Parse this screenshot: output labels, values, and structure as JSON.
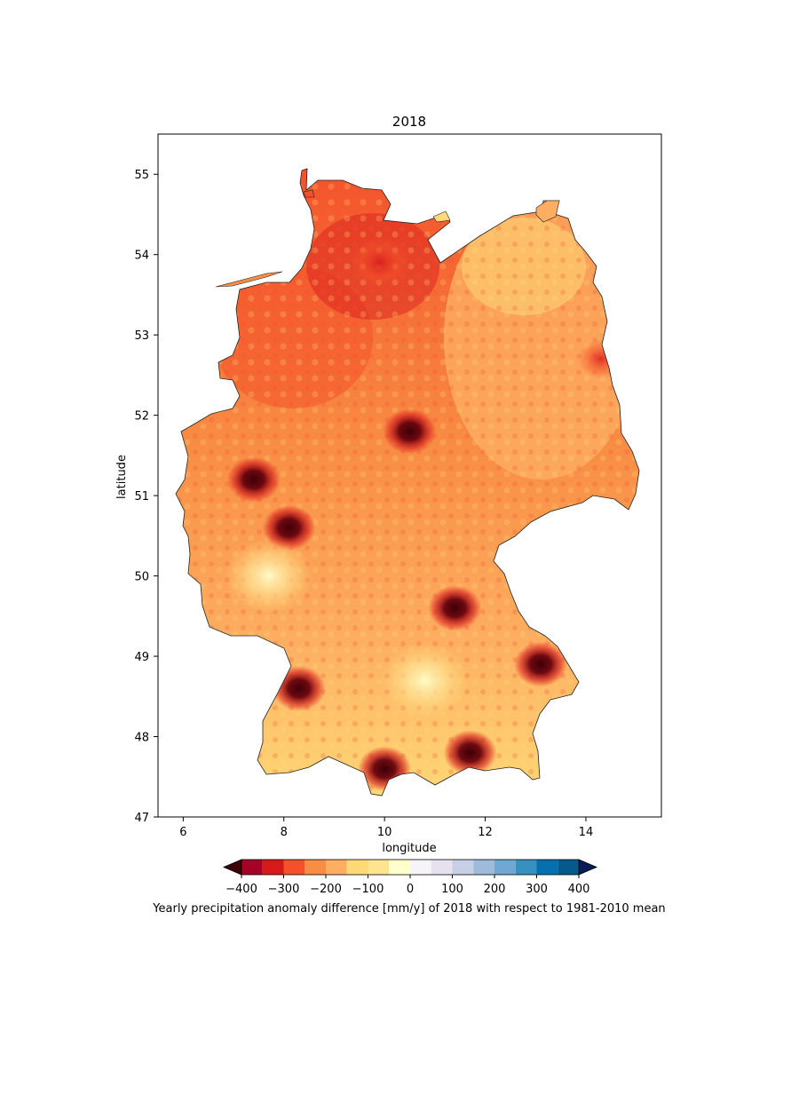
{
  "chart_data": {
    "type": "heatmap",
    "title": "2018",
    "xlabel": "longitude",
    "ylabel": "latitude",
    "xlim": [
      5.5,
      15.5
    ],
    "ylim": [
      47,
      55.5
    ],
    "xticks": [
      "6",
      "8",
      "10",
      "12",
      "14"
    ],
    "yticks": [
      "47",
      "48",
      "49",
      "50",
      "51",
      "52",
      "53",
      "54",
      "55"
    ],
    "colorbar": {
      "label": "Yearly precipitation anomaly difference [mm/y] of 2018 with respect to 1981-2010 mean",
      "levels": [
        -450,
        -400,
        -350,
        -300,
        -250,
        -200,
        -150,
        -100,
        -50,
        0,
        50,
        100,
        150,
        200,
        250,
        300,
        350,
        400,
        450
      ],
      "ticks": [
        {
          "value": -400,
          "label": "−400"
        },
        {
          "value": -300,
          "label": "−300"
        },
        {
          "value": -200,
          "label": "−200"
        },
        {
          "value": -100,
          "label": "−100"
        },
        {
          "value": 0,
          "label": "0"
        },
        {
          "value": 100,
          "label": "100"
        },
        {
          "value": 200,
          "label": "200"
        },
        {
          "value": 300,
          "label": "300"
        },
        {
          "value": 400,
          "label": "400"
        }
      ],
      "extend": "both",
      "colormap": "RdYlBu-like (red negative, blue positive)",
      "colors": [
        "#67000d",
        "#a50026",
        "#d7191c",
        "#f4502a",
        "#f88d44",
        "#fdae61",
        "#fed976",
        "#fee391",
        "#ffffcc",
        "#f7f4f9",
        "#e7e1ef",
        "#c6cfe5",
        "#9ebcda",
        "#6fa8d3",
        "#3690c0",
        "#0570b0",
        "#045a8d",
        "#023858"
      ],
      "under_color": "#3d0006",
      "over_color": "#081d58"
    },
    "hotspots": [
      {
        "lon": 7.4,
        "lat": 51.2,
        "value": -450
      },
      {
        "lon": 10.5,
        "lat": 51.8,
        "value": -450
      },
      {
        "lon": 8.3,
        "lat": 48.6,
        "value": -450
      },
      {
        "lon": 10.0,
        "lat": 47.6,
        "value": -450
      },
      {
        "lon": 11.7,
        "lat": 47.8,
        "value": -450
      },
      {
        "lon": 8.1,
        "lat": 50.6,
        "value": -400
      },
      {
        "lon": 11.4,
        "lat": 49.6,
        "value": -400
      },
      {
        "lon": 9.9,
        "lat": 53.9,
        "value": -350
      },
      {
        "lon": 13.1,
        "lat": 48.9,
        "value": -400
      },
      {
        "lon": 7.7,
        "lat": 50.0,
        "value": -50
      },
      {
        "lon": 10.8,
        "lat": 48.7,
        "value": -50
      },
      {
        "lon": 14.3,
        "lat": 52.7,
        "value": -150
      }
    ]
  }
}
